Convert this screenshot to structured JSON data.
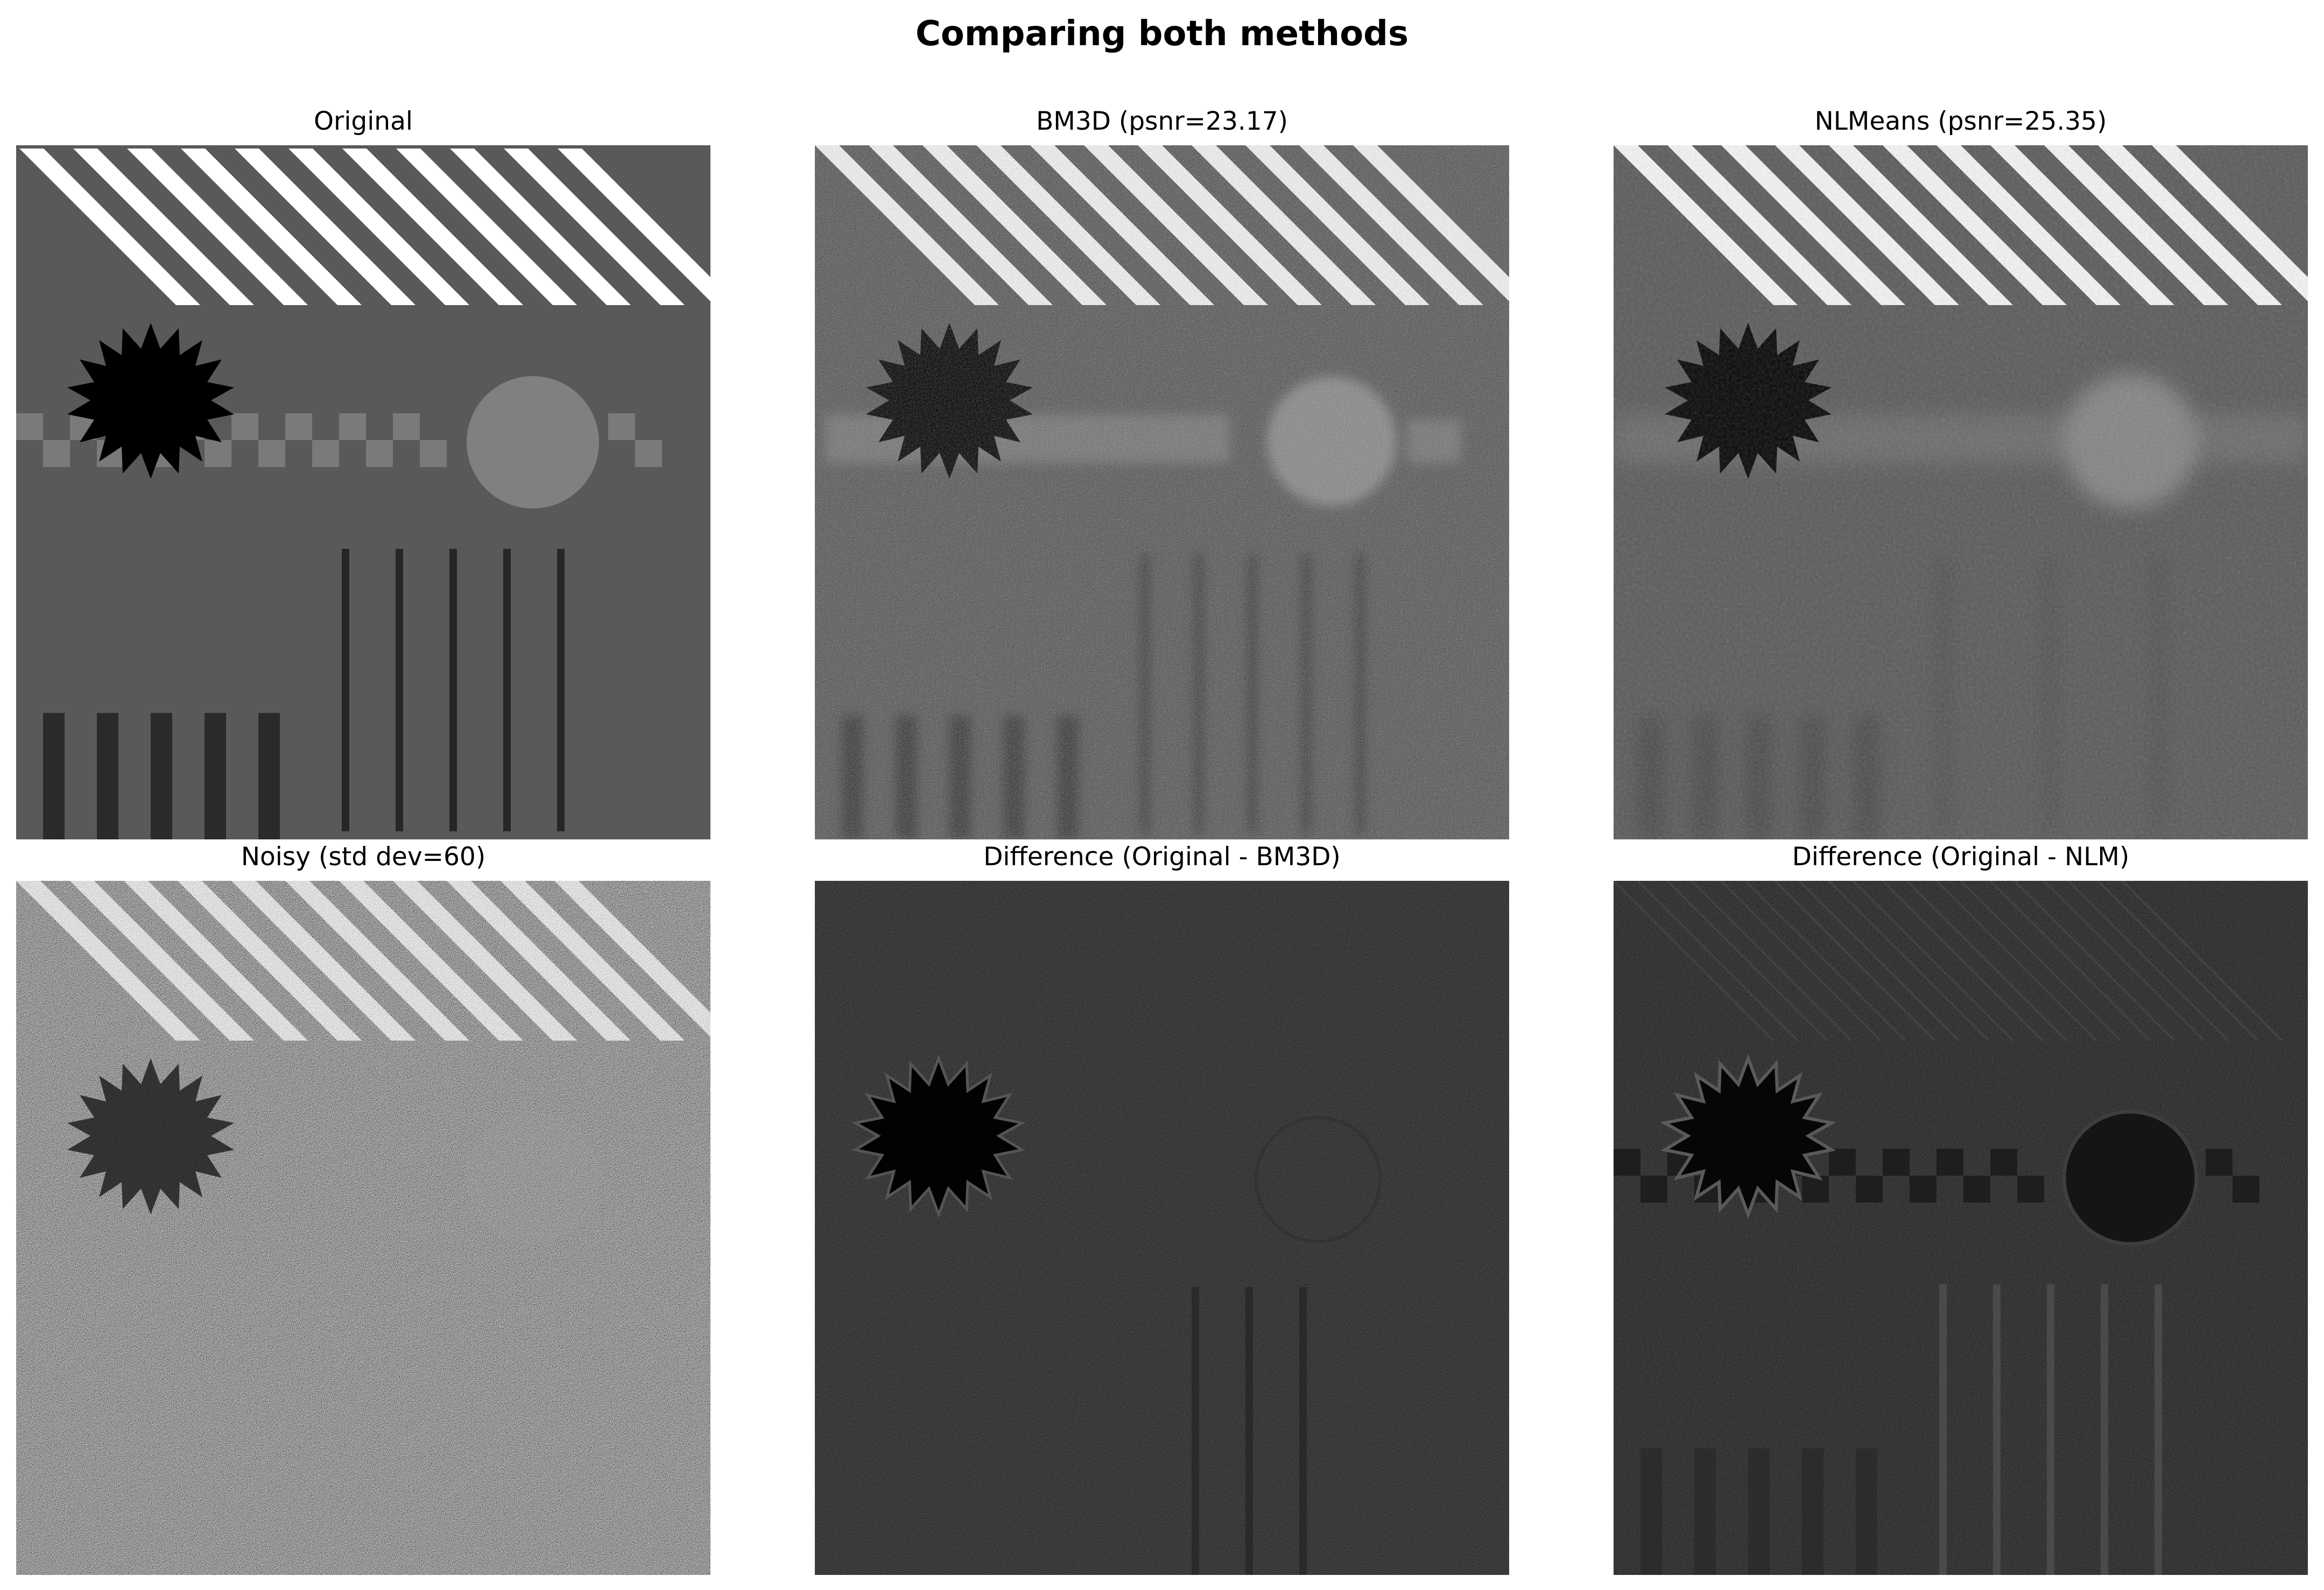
{
  "figure": {
    "title": "Comparing both methods"
  },
  "panels": [
    {
      "title": "Original"
    },
    {
      "title": "BM3D (psnr=23.17)"
    },
    {
      "title": "NLMeans (psnr=25.35)"
    },
    {
      "title": "Noisy (std dev=60)"
    },
    {
      "title": "Difference (Original - BM3D)"
    },
    {
      "title": "Difference (Original - NLM)"
    }
  ]
}
